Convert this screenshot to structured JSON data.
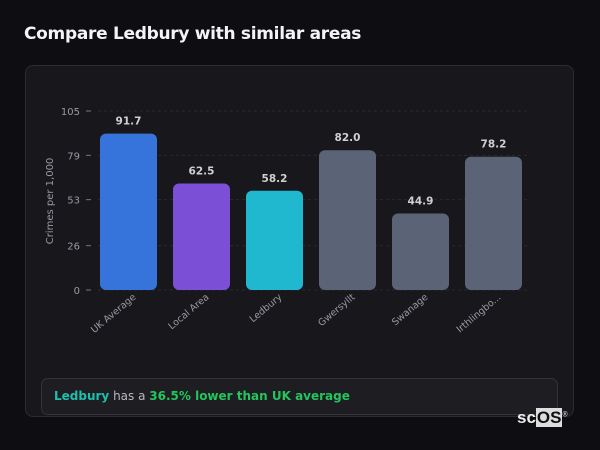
{
  "header": {
    "title": "Compare Ledbury with similar areas"
  },
  "chart_data": {
    "type": "bar",
    "categories": [
      "UK Average",
      "Local Area",
      "Ledbury",
      "Gwersyllt",
      "Swanage",
      "Irthlingbo..."
    ],
    "values": [
      91.7,
      62.5,
      58.2,
      82.0,
      44.9,
      78.2
    ],
    "value_labels": [
      "91.7",
      "62.5",
      "58.2",
      "82.0",
      "44.9",
      "78.2"
    ],
    "colors": [
      "#3674db",
      "#7b4fd6",
      "#1fb8cf",
      "#5b6477",
      "#5b6477",
      "#5b6477"
    ],
    "ylabel": "Crimes per 1,000",
    "xlabel": "",
    "ylim": [
      0,
      105
    ],
    "yticks": [
      0,
      26,
      53,
      79,
      105
    ],
    "grid": true
  },
  "summary": {
    "area": "Ledbury",
    "middle": " has a ",
    "highlight": "36.5% lower than UK average"
  },
  "logo": {
    "text_a": "sc",
    "text_b": "OS",
    "mark": "®"
  }
}
